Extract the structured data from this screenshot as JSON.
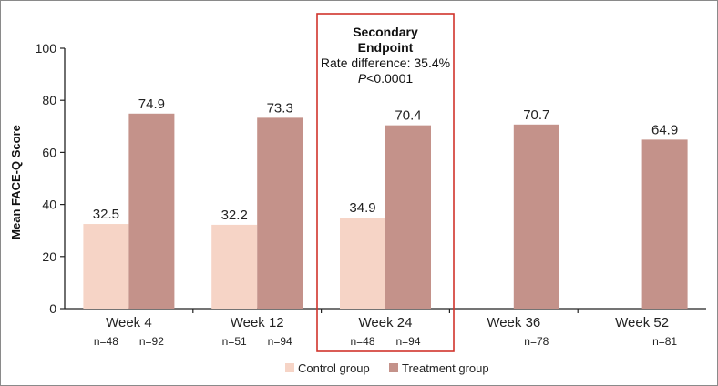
{
  "chart_data": {
    "type": "bar",
    "ylabel": "Mean FACE-Q Score",
    "ylim": [
      0,
      100
    ],
    "yticks": [
      0,
      20,
      40,
      60,
      80,
      100
    ],
    "categories": [
      "Week 4",
      "Week 12",
      "Week 24",
      "Week 36",
      "Week 52"
    ],
    "series": [
      {
        "name": "Control group",
        "color": "#f6d4c6",
        "values": [
          32.5,
          32.2,
          34.9,
          null,
          null
        ],
        "labels": [
          "32.5",
          "32.2",
          "34.9",
          "",
          ""
        ],
        "n": [
          "n=48",
          "n=51",
          "n=48",
          "",
          ""
        ]
      },
      {
        "name": "Treatment group",
        "color": "#c4928a",
        "values": [
          74.9,
          73.3,
          70.4,
          70.7,
          64.9
        ],
        "labels": [
          "74.9",
          "73.3",
          "70.4",
          "70.7",
          "64.9"
        ],
        "n": [
          "n=92",
          "n=94",
          "n=94",
          "n=78",
          "n=81"
        ]
      }
    ],
    "highlight": {
      "category": "Week 24",
      "border_color": "#d0342c",
      "title_line1": "Secondary",
      "title_line2": "Endpoint",
      "line3": "Rate difference: 35.4%",
      "p_letter": "P",
      "p_value": "<0.0001"
    },
    "legend": {
      "position": "bottom-center",
      "items": [
        "Control group",
        "Treatment group"
      ]
    }
  }
}
